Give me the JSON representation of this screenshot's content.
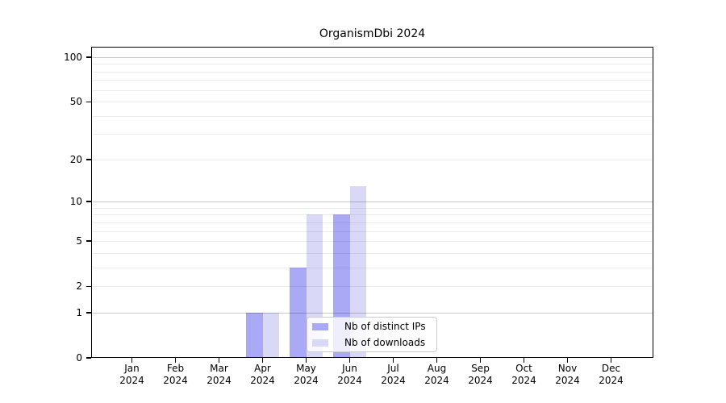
{
  "title": "OrganismDbi 2024",
  "colors": {
    "series_ips": "#a9a9f5",
    "series_downloads": "#d9d9f7",
    "major_grid": "#c8c8c8",
    "minor_grid": "#ededed",
    "axis": "#000000",
    "legend_border": "#cccccc",
    "background": "#ffffff"
  },
  "chart_data": {
    "type": "bar",
    "title": "OrganismDbi 2024",
    "categories": [
      "Jan 2024",
      "Feb 2024",
      "Mar 2024",
      "Apr 2024",
      "May 2024",
      "Jun 2024",
      "Jul 2024",
      "Aug 2024",
      "Sep 2024",
      "Oct 2024",
      "Nov 2024",
      "Dec 2024"
    ],
    "series": [
      {
        "name": "Nb of distinct IPs",
        "color": "#a9a9f5",
        "values": [
          0,
          0,
          0,
          1,
          3,
          8,
          0,
          0,
          0,
          0,
          0,
          0
        ]
      },
      {
        "name": "Nb of downloads",
        "color": "#d9d9f7",
        "values": [
          0,
          0,
          0,
          1,
          8,
          13,
          0,
          0,
          0,
          0,
          0,
          0
        ]
      }
    ],
    "xlabel": "",
    "ylabel": "",
    "yscale": "log1p",
    "ylim": [
      0,
      118
    ],
    "yticks": [
      0,
      1,
      2,
      5,
      10,
      20,
      50,
      100
    ],
    "major_gridlines": [
      1,
      10,
      100
    ],
    "minor_gridlines": [
      2,
      3,
      4,
      5,
      6,
      7,
      8,
      9,
      20,
      30,
      40,
      50,
      60,
      70,
      80,
      90
    ],
    "grid": true,
    "legend_position": "lower center"
  }
}
